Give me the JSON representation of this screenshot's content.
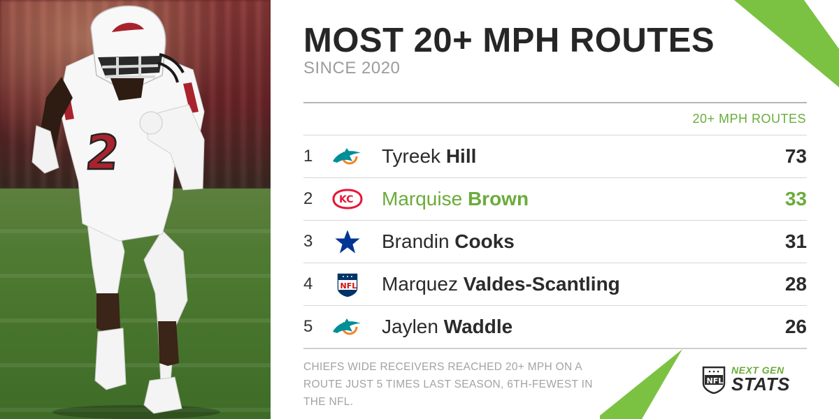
{
  "header": {
    "title": "MOST 20+ MPH ROUTES",
    "subtitle": "SINCE 2020"
  },
  "table": {
    "column_header": "20+ MPH ROUTES",
    "rows": [
      {
        "rank": "1",
        "first": "Tyreek",
        "last": "Hill",
        "team_icon": "dolphins-logo-icon",
        "value": "73",
        "highlight": false
      },
      {
        "rank": "2",
        "first": "Marquise",
        "last": "Brown",
        "team_icon": "chiefs-logo-icon",
        "value": "33",
        "highlight": true
      },
      {
        "rank": "3",
        "first": "Brandin",
        "last": "Cooks",
        "team_icon": "cowboys-star-icon",
        "value": "31",
        "highlight": false
      },
      {
        "rank": "4",
        "first": "Marquez",
        "last": "Valdes-Scantling",
        "team_icon": "nfl-shield-icon",
        "value": "28",
        "highlight": false
      },
      {
        "rank": "5",
        "first": "Jaylen",
        "last": "Waddle",
        "team_icon": "dolphins-logo-icon",
        "value": "26",
        "highlight": false
      }
    ]
  },
  "footnote": "CHIEFS WIDE RECEIVERS REACHED 20+ MPH ON A ROUTE JUST 5 TIMES LAST SEASON, 6TH-FEWEST IN THE NFL.",
  "brand": {
    "line1": "NEXT GEN",
    "line2": "STATS",
    "icon": "nfl-shield-icon"
  },
  "photo": {
    "jersey_number": "2",
    "icon": "football-player-photo"
  },
  "colors": {
    "accent_green": "#6aac3a",
    "text_dark": "#262626",
    "text_gray": "#9c9c9c"
  }
}
